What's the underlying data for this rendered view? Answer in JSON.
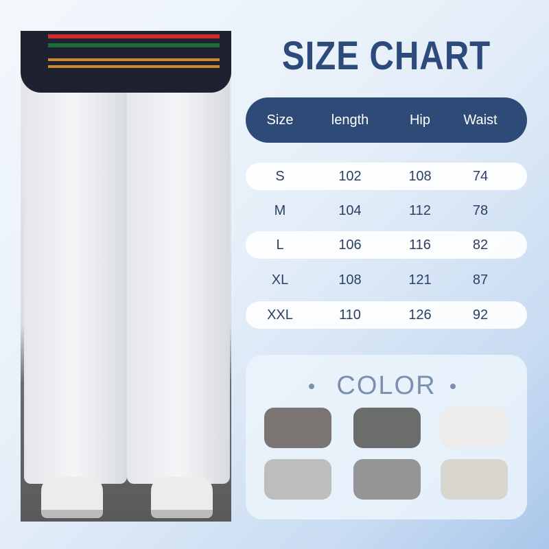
{
  "title": "SIZE CHART",
  "table": {
    "headers": [
      "Size",
      "length",
      "Hip",
      "Waist"
    ],
    "rows": [
      [
        "S",
        "102",
        "108",
        "74"
      ],
      [
        "M",
        "104",
        "112",
        "78"
      ],
      [
        "L",
        "106",
        "116",
        "82"
      ],
      [
        "XL",
        "108",
        "121",
        "87"
      ],
      [
        "XXL",
        "110",
        "126",
        "92"
      ]
    ]
  },
  "color_section": {
    "title": "COLOR",
    "swatches": [
      "#7a7473",
      "#6b6c6c",
      "#ededed",
      "#bdbdbb",
      "#959595",
      "#d9d6d0"
    ]
  },
  "colors": {
    "header": "#2e4b78",
    "title": "#2c4a7a"
  }
}
